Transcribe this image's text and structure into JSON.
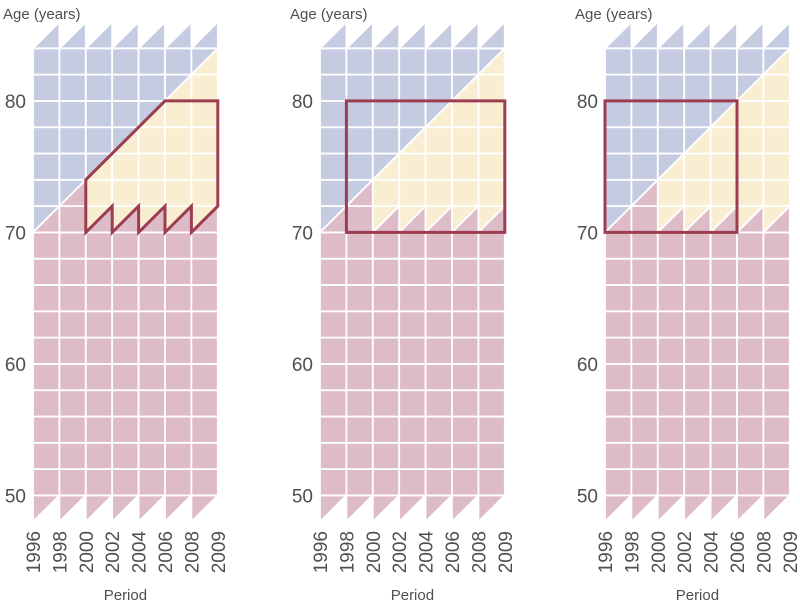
{
  "figure": {
    "age_axis_title": "Age (years)",
    "period_axis_title": "Period"
  },
  "colors": {
    "cohort_blue": "#c5cce2",
    "band_yellow": "#faeed2",
    "observed_pink": "#debcc7",
    "outline_red": "#9d3d52",
    "grid_line": "#ffffff",
    "text": "#4f4f51"
  },
  "chart_data": {
    "type": "heatmap",
    "subtype": "lexis-diagram",
    "title": "",
    "xlabel": "Period",
    "ylabel": "Age (years)",
    "x_tick_labels": [
      "1996",
      "1998",
      "2000",
      "2002",
      "2004",
      "2006",
      "2008",
      "2009"
    ],
    "y_tick_labels": [
      "80",
      "70",
      "60",
      "50"
    ],
    "age_range": [
      48,
      86
    ],
    "period_range": [
      1996,
      2009
    ],
    "cell_years": 2,
    "grid_columns": 7,
    "legend_position": "none",
    "grid": "white cell borders, cells split by 45-degree cohort diagonals",
    "regions": [
      {
        "name": "upper-left-cohorts",
        "color": "#c5cce2",
        "description": "cells above age 70 lying left of the cohort diagonal rising from (1996, 70); top row 84-86 drawn as lower-right half-triangles"
      },
      {
        "name": "diagonal-band",
        "color": "#faeed2",
        "description": "cells above age 72 right of the cohort diagonal, plus upper-left triangles of the 70-72 row from 2000 onward"
      },
      {
        "name": "observed-pink",
        "color": "#debcc7",
        "description": "all cells below age 70, lower-right triangles of the 70-72 row, the full 1998-2000 x 70-72 cell, and the lower-right triangle of 1998-2000 x 72-74; bottom row 48-50 drawn as upper-left half-triangles"
      }
    ],
    "panels": [
      {
        "label": "panel-1",
        "outline_shape": "sawtooth-parallelogram",
        "outline": [
          [
            2000,
            70
          ],
          [
            2002,
            72
          ],
          [
            2002,
            70
          ],
          [
            2004,
            72
          ],
          [
            2004,
            70
          ],
          [
            2006,
            72
          ],
          [
            2006,
            70
          ],
          [
            2008,
            72
          ],
          [
            2008,
            70
          ],
          [
            2009,
            72
          ],
          [
            2009,
            80
          ],
          [
            2006,
            80
          ],
          [
            2000,
            74
          ]
        ]
      },
      {
        "label": "panel-2",
        "outline_shape": "rectangle",
        "outline": [
          [
            1998,
            70
          ],
          [
            2009,
            70
          ],
          [
            2009,
            80
          ],
          [
            1998,
            80
          ]
        ]
      },
      {
        "label": "panel-3",
        "outline_shape": "rectangle",
        "outline": [
          [
            1996,
            70
          ],
          [
            2006,
            70
          ],
          [
            2006,
            80
          ],
          [
            1996,
            80
          ]
        ]
      }
    ]
  }
}
